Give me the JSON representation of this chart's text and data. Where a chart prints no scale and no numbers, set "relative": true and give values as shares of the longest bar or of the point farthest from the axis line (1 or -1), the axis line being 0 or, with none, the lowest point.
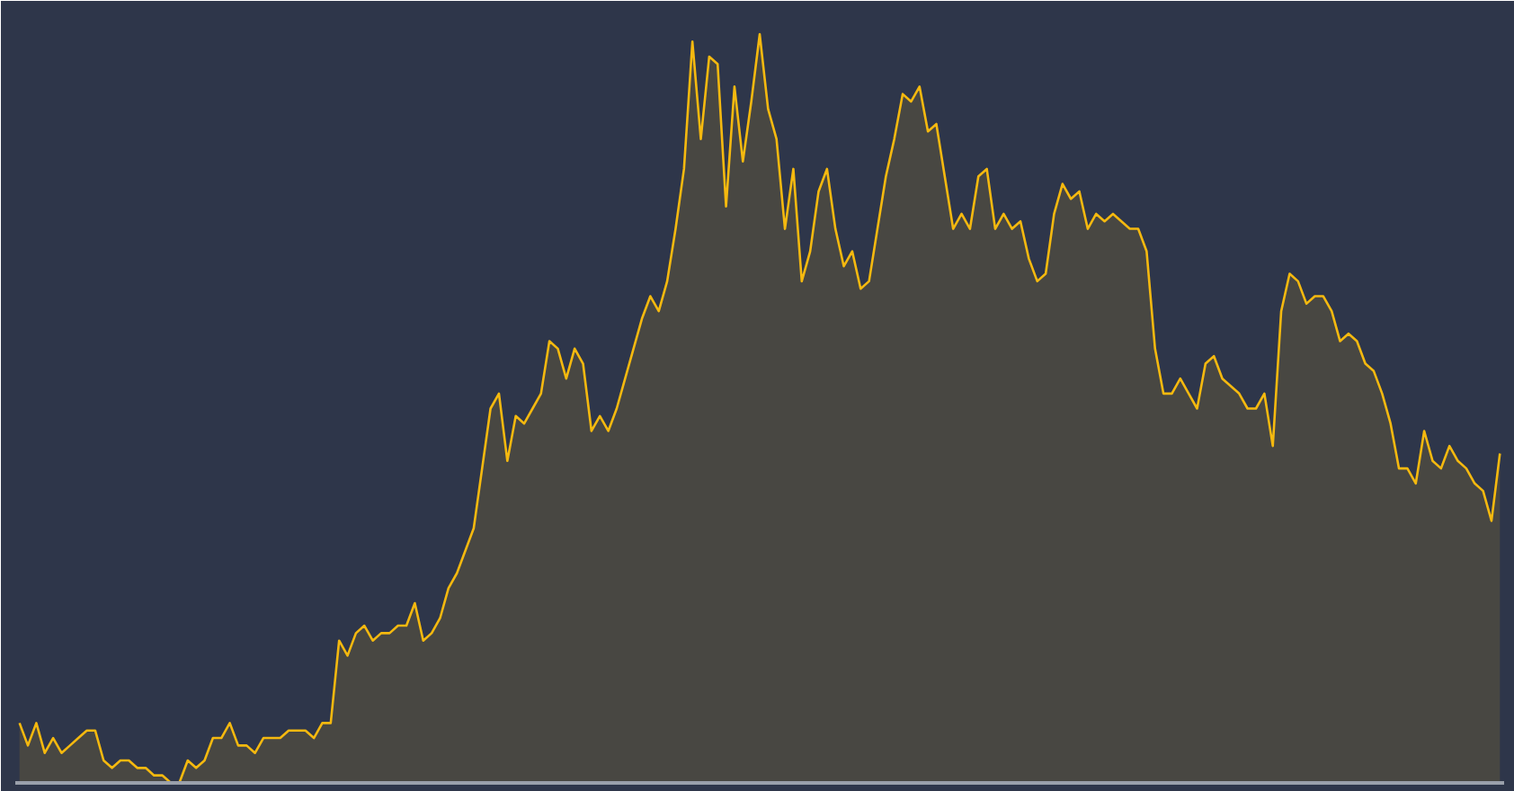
{
  "chart_data": {
    "type": "area",
    "relative": true,
    "categories": [
      null,
      null,
      null,
      null,
      null,
      null,
      null,
      null,
      null,
      null,
      null,
      null,
      null,
      null,
      null,
      null,
      null,
      null,
      null,
      null,
      null,
      null,
      null,
      null,
      null,
      null,
      null,
      null,
      null,
      null,
      null,
      null,
      null,
      null,
      null,
      null,
      null,
      null,
      null,
      null,
      null,
      null,
      null,
      null,
      null,
      null,
      null,
      null,
      null,
      null,
      null,
      null,
      null,
      null,
      null,
      null,
      null,
      null,
      null,
      null,
      null,
      null,
      null,
      null,
      null,
      null,
      null,
      null,
      null,
      null,
      null,
      null,
      null,
      null,
      null,
      null,
      null,
      null,
      null,
      null,
      null,
      null,
      null,
      null,
      null,
      null,
      null,
      null,
      null,
      null,
      null,
      null,
      null,
      null,
      null,
      null,
      null,
      null,
      null,
      null,
      null,
      null,
      null,
      null,
      null,
      null,
      null,
      null,
      null,
      null,
      null,
      null,
      null,
      null,
      null,
      null,
      null,
      null,
      null,
      null,
      null,
      null,
      null,
      null,
      null,
      null,
      null,
      null,
      null,
      null,
      null,
      null,
      null,
      null,
      null,
      null,
      null,
      null,
      null,
      null,
      null,
      null,
      null,
      null,
      null,
      null,
      null,
      null,
      null,
      null,
      null,
      null,
      null,
      null,
      null,
      null,
      null,
      null,
      null,
      null,
      null,
      null,
      null,
      null,
      null,
      null,
      null,
      null,
      null,
      null,
      null,
      null,
      null,
      null,
      null,
      null,
      null
    ],
    "series": [
      {
        "color": "#f5b90f",
        "values": [
          0.08,
          0.05,
          0.08,
          0.04,
          0.06,
          0.04,
          0.05,
          0.06,
          0.07,
          0.07,
          0.03,
          0.02,
          0.03,
          0.03,
          0.02,
          0.02,
          0.01,
          0.01,
          0.0,
          0.0,
          0.03,
          0.02,
          0.03,
          0.06,
          0.06,
          0.08,
          0.05,
          0.05,
          0.04,
          0.06,
          0.06,
          0.06,
          0.07,
          0.07,
          0.07,
          0.06,
          0.08,
          0.08,
          0.19,
          0.17,
          0.2,
          0.21,
          0.19,
          0.2,
          0.2,
          0.21,
          0.21,
          0.24,
          0.19,
          0.2,
          0.22,
          0.26,
          0.28,
          0.31,
          0.34,
          0.42,
          0.5,
          0.52,
          0.43,
          0.49,
          0.48,
          0.5,
          0.52,
          0.59,
          0.58,
          0.54,
          0.58,
          0.56,
          0.47,
          0.49,
          0.47,
          0.5,
          0.54,
          0.58,
          0.62,
          0.65,
          0.63,
          0.67,
          0.74,
          0.82,
          0.99,
          0.86,
          0.97,
          0.96,
          0.77,
          0.93,
          0.83,
          0.91,
          1.0,
          0.9,
          0.86,
          0.74,
          0.82,
          0.67,
          0.71,
          0.79,
          0.82,
          0.74,
          0.69,
          0.71,
          0.66,
          0.67,
          0.74,
          0.81,
          0.86,
          0.92,
          0.91,
          0.93,
          0.87,
          0.88,
          0.81,
          0.74,
          0.76,
          0.74,
          0.81,
          0.82,
          0.74,
          0.76,
          0.74,
          0.75,
          0.7,
          0.67,
          0.68,
          0.76,
          0.8,
          0.78,
          0.79,
          0.74,
          0.76,
          0.75,
          0.76,
          0.75,
          0.74,
          0.74,
          0.71,
          0.58,
          0.52,
          0.52,
          0.54,
          0.52,
          0.5,
          0.56,
          0.57,
          0.54,
          0.53,
          0.52,
          0.5,
          0.5,
          0.52,
          0.45,
          0.63,
          0.68,
          0.67,
          0.64,
          0.65,
          0.65,
          0.63,
          0.59,
          0.6,
          0.59,
          0.56,
          0.55,
          0.52,
          0.48,
          0.42,
          0.42,
          0.4,
          0.47,
          0.43,
          0.42,
          0.45,
          0.43,
          0.42,
          0.4,
          0.39,
          0.35,
          0.44
        ]
      }
    ]
  }
}
